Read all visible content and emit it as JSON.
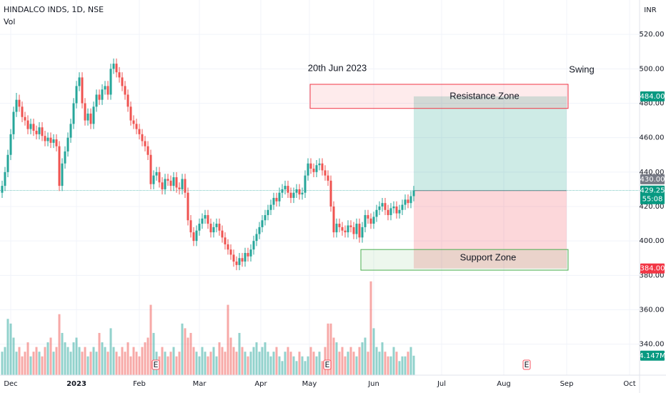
{
  "chart_data": {
    "type": "candlestick",
    "title": "HINDALCO INDS, 1D, NSE",
    "volume_title": "Vol",
    "currency": "INR",
    "up_color": "#26a69a",
    "down_color": "#ef5350",
    "ylim": [
      322,
      540
    ],
    "yticks": [
      {
        "value": 340,
        "label": "340.00"
      },
      {
        "value": 360,
        "label": "360.00"
      },
      {
        "value": 380,
        "label": "380.00"
      },
      {
        "value": 400,
        "label": "400.00"
      },
      {
        "value": 420,
        "label": "420.00"
      },
      {
        "value": 440,
        "label": "440.00"
      },
      {
        "value": 460,
        "label": "460.00"
      },
      {
        "value": 480,
        "label": "480.00"
      },
      {
        "value": 500,
        "label": "500.00"
      },
      {
        "value": 520,
        "label": "520.00"
      }
    ],
    "xlim": [
      -0.75,
      223
    ],
    "xticks": [
      {
        "value": 3,
        "label": "Dec"
      },
      {
        "value": 26,
        "label": "2023"
      },
      {
        "value": 48,
        "label": "Feb"
      },
      {
        "value": 69,
        "label": "Mar"
      },
      {
        "value": 90.5,
        "label": "Apr"
      },
      {
        "value": 107.5,
        "label": "May"
      },
      {
        "value": 130,
        "label": "Jun"
      },
      {
        "value": 153.75,
        "label": "Jul"
      },
      {
        "value": 175.5,
        "label": "Aug"
      },
      {
        "value": 197.5,
        "label": "Sep"
      },
      {
        "value": 219.5,
        "label": "Oct"
      }
    ],
    "volume_ylim": [
      0,
      80
    ],
    "candles": [
      [
        428,
        435,
        425,
        432
      ],
      [
        432,
        443,
        429,
        440
      ],
      [
        440,
        453,
        437,
        450
      ],
      [
        450,
        465,
        447,
        462
      ],
      [
        462,
        478,
        459,
        475
      ],
      [
        475,
        486,
        472,
        482
      ],
      [
        482,
        485,
        475,
        478
      ],
      [
        478,
        481,
        469,
        472
      ],
      [
        472,
        475,
        467,
        470
      ],
      [
        470,
        473,
        462,
        465
      ],
      [
        465,
        471,
        462,
        468
      ],
      [
        468,
        471,
        461,
        464
      ],
      [
        464,
        467,
        459,
        462
      ],
      [
        462,
        469,
        459,
        466
      ],
      [
        466,
        469,
        458,
        461
      ],
      [
        461,
        464,
        455,
        458
      ],
      [
        458,
        463,
        455,
        460
      ],
      [
        460,
        463,
        454,
        457
      ],
      [
        457,
        462,
        454,
        459
      ],
      [
        459,
        462,
        452,
        455
      ],
      [
        455,
        458,
        429,
        432
      ],
      [
        432,
        448,
        429,
        445
      ],
      [
        445,
        455,
        442,
        452
      ],
      [
        452,
        463,
        449,
        460
      ],
      [
        460,
        471,
        457,
        468
      ],
      [
        468,
        483,
        465,
        480
      ],
      [
        480,
        493,
        477,
        490
      ],
      [
        490,
        498,
        487,
        495
      ],
      [
        495,
        498,
        477,
        480
      ],
      [
        480,
        483,
        467,
        470
      ],
      [
        470,
        477,
        467,
        474
      ],
      [
        474,
        477,
        465,
        468
      ],
      [
        468,
        481,
        465,
        478
      ],
      [
        478,
        488,
        475,
        485
      ],
      [
        485,
        488,
        479,
        482
      ],
      [
        482,
        491,
        479,
        488
      ],
      [
        488,
        493,
        485,
        490
      ],
      [
        490,
        493,
        482,
        485
      ],
      [
        485,
        503,
        482,
        500
      ],
      [
        500,
        506,
        497,
        503
      ],
      [
        503,
        506,
        495,
        498
      ],
      [
        498,
        501,
        492,
        495
      ],
      [
        495,
        498,
        487,
        490
      ],
      [
        490,
        493,
        482,
        485
      ],
      [
        485,
        488,
        475,
        478
      ],
      [
        478,
        481,
        467,
        470
      ],
      [
        470,
        473,
        465,
        468
      ],
      [
        468,
        471,
        462,
        465
      ],
      [
        465,
        468,
        459,
        462
      ],
      [
        462,
        465,
        455,
        458
      ],
      [
        458,
        461,
        452,
        455
      ],
      [
        455,
        458,
        447,
        450
      ],
      [
        450,
        453,
        430,
        433
      ],
      [
        433,
        441,
        430,
        438
      ],
      [
        438,
        443,
        435,
        440
      ],
      [
        440,
        443,
        431,
        434
      ],
      [
        434,
        437,
        427,
        430
      ],
      [
        430,
        439,
        427,
        436
      ],
      [
        436,
        439,
        432,
        435
      ],
      [
        435,
        438,
        429,
        432
      ],
      [
        432,
        440,
        429,
        437
      ],
      [
        437,
        440,
        428,
        431
      ],
      [
        431,
        434,
        427,
        430
      ],
      [
        430,
        439,
        427,
        436
      ],
      [
        436,
        439,
        425,
        428
      ],
      [
        428,
        431,
        409,
        412
      ],
      [
        412,
        415,
        402,
        405
      ],
      [
        405,
        408,
        397,
        400
      ],
      [
        400,
        409,
        397,
        406
      ],
      [
        406,
        413,
        403,
        410
      ],
      [
        410,
        416,
        407,
        413
      ],
      [
        413,
        418,
        410,
        415
      ],
      [
        415,
        418,
        407,
        410
      ],
      [
        410,
        413,
        402,
        405
      ],
      [
        405,
        411,
        402,
        408
      ],
      [
        408,
        413,
        405,
        410
      ],
      [
        410,
        413,
        403,
        406
      ],
      [
        406,
        409,
        399,
        402
      ],
      [
        402,
        405,
        395,
        398
      ],
      [
        398,
        401,
        392,
        395
      ],
      [
        395,
        398,
        389,
        392
      ],
      [
        392,
        395,
        385,
        388
      ],
      [
        388,
        391,
        383,
        386
      ],
      [
        386,
        393,
        383,
        390
      ],
      [
        390,
        393,
        385,
        388
      ],
      [
        388,
        396,
        385,
        393
      ],
      [
        393,
        396,
        388,
        391
      ],
      [
        391,
        398,
        388,
        395
      ],
      [
        395,
        403,
        392,
        400
      ],
      [
        400,
        407,
        397,
        404
      ],
      [
        404,
        411,
        401,
        408
      ],
      [
        408,
        415,
        405,
        412
      ],
      [
        412,
        418,
        409,
        415
      ],
      [
        415,
        421,
        412,
        418
      ],
      [
        418,
        424,
        415,
        421
      ],
      [
        421,
        428,
        418,
        425
      ],
      [
        425,
        428,
        420,
        423
      ],
      [
        423,
        431,
        420,
        428
      ],
      [
        428,
        433,
        425,
        430
      ],
      [
        430,
        435,
        427,
        432
      ],
      [
        432,
        435,
        425,
        428
      ],
      [
        428,
        431,
        422,
        425
      ],
      [
        425,
        431,
        422,
        428
      ],
      [
        428,
        433,
        425,
        430
      ],
      [
        430,
        433,
        424,
        427
      ],
      [
        427,
        431,
        424,
        428
      ],
      [
        428,
        441,
        425,
        438
      ],
      [
        438,
        448,
        435,
        445
      ],
      [
        445,
        448,
        439,
        442
      ],
      [
        442,
        445,
        437,
        440
      ],
      [
        440,
        447,
        437,
        444
      ],
      [
        444,
        448,
        441,
        445
      ],
      [
        445,
        448,
        438,
        441
      ],
      [
        441,
        444,
        435,
        438
      ],
      [
        438,
        441,
        432,
        435
      ],
      [
        435,
        438,
        417,
        420
      ],
      [
        420,
        423,
        402,
        405
      ],
      [
        405,
        413,
        402,
        410
      ],
      [
        410,
        413,
        405,
        408
      ],
      [
        408,
        411,
        403,
        406
      ],
      [
        406,
        409,
        402,
        405
      ],
      [
        405,
        412,
        402,
        409
      ],
      [
        409,
        412,
        405,
        408
      ],
      [
        408,
        411,
        401,
        404
      ],
      [
        404,
        413,
        401,
        410
      ],
      [
        410,
        413,
        399,
        402
      ],
      [
        402,
        411,
        399,
        408
      ],
      [
        408,
        418,
        405,
        415
      ],
      [
        415,
        418,
        410,
        413
      ],
      [
        413,
        416,
        407,
        410
      ],
      [
        410,
        417,
        407,
        414
      ],
      [
        414,
        421,
        411,
        418
      ],
      [
        418,
        423,
        415,
        420
      ],
      [
        420,
        425,
        417,
        422
      ],
      [
        422,
        425,
        415,
        418
      ],
      [
        418,
        421,
        412,
        415
      ],
      [
        415,
        422,
        412,
        419
      ],
      [
        419,
        423,
        416,
        420
      ],
      [
        420,
        423,
        413,
        416
      ],
      [
        416,
        421,
        413,
        418
      ],
      [
        418,
        424,
        415,
        421
      ],
      [
        421,
        427,
        418,
        424
      ],
      [
        424,
        427,
        419,
        422
      ],
      [
        422,
        429,
        419,
        426
      ],
      [
        426,
        432,
        423,
        429.25
      ]
    ],
    "volume": [
      5,
      6,
      12,
      11,
      8,
      5,
      6,
      4,
      5,
      7,
      4,
      5,
      6,
      5,
      4,
      6,
      7,
      8,
      5,
      6,
      13,
      9,
      7,
      6,
      5,
      7,
      8,
      6,
      5,
      6,
      4,
      5,
      6,
      5,
      9,
      7,
      6,
      5,
      10,
      6,
      5,
      4,
      6,
      5,
      7,
      4,
      6,
      5,
      4,
      6,
      7,
      8,
      15,
      9,
      5,
      4,
      6,
      5,
      4,
      5,
      6,
      4,
      5,
      11,
      10,
      8,
      9,
      6,
      5,
      4,
      6,
      5,
      4,
      5,
      6,
      4,
      7,
      6,
      5,
      15,
      8,
      6,
      5,
      9,
      6,
      5,
      4,
      5,
      6,
      7,
      5,
      6,
      7,
      5,
      4,
      5,
      6,
      4,
      3,
      5,
      6,
      5,
      4,
      3,
      5,
      4,
      3,
      4,
      6,
      5,
      4,
      5,
      3,
      6,
      11,
      11,
      8,
      7,
      5,
      6,
      4,
      5,
      6,
      5,
      4,
      6,
      7,
      8,
      5,
      20,
      10,
      6,
      5,
      7,
      5,
      4,
      4,
      6,
      5,
      3,
      4,
      4,
      5,
      6,
      4.147
    ],
    "volume_label": {
      "value": 4.147,
      "label": "4.147M"
    },
    "earnings": [
      {
        "value": 53.75,
        "label": "E"
      },
      {
        "value": 113.75,
        "label": "E"
      },
      {
        "value": 183.5,
        "label": "E"
      }
    ],
    "resistance_zone": {
      "label": "Resistance Zone",
      "x": [
        107.75,
        198
      ],
      "y": [
        491,
        477
      ],
      "color": "#f23645"
    },
    "support_zone": {
      "label": "Support Zone",
      "x": [
        125.5,
        198
      ],
      "y": [
        395,
        383
      ],
      "color": "#4caf50"
    },
    "position": {
      "x": [
        144,
        197.5
      ],
      "entry": 429.25,
      "target": 484,
      "stop": 384
    },
    "annotations": [
      "20th Jun 2023",
      "Swing"
    ],
    "price_labels": [
      {
        "value": 484,
        "label": "484.00",
        "color": "#089981"
      },
      {
        "value": 430,
        "label": "430.00",
        "color": "#787b86"
      },
      {
        "value": 429.25,
        "label": "429.25",
        "color": "#089981"
      },
      {
        "value": 384,
        "label": "384.00",
        "color": "#f23645"
      }
    ],
    "countdown": "55:08"
  }
}
